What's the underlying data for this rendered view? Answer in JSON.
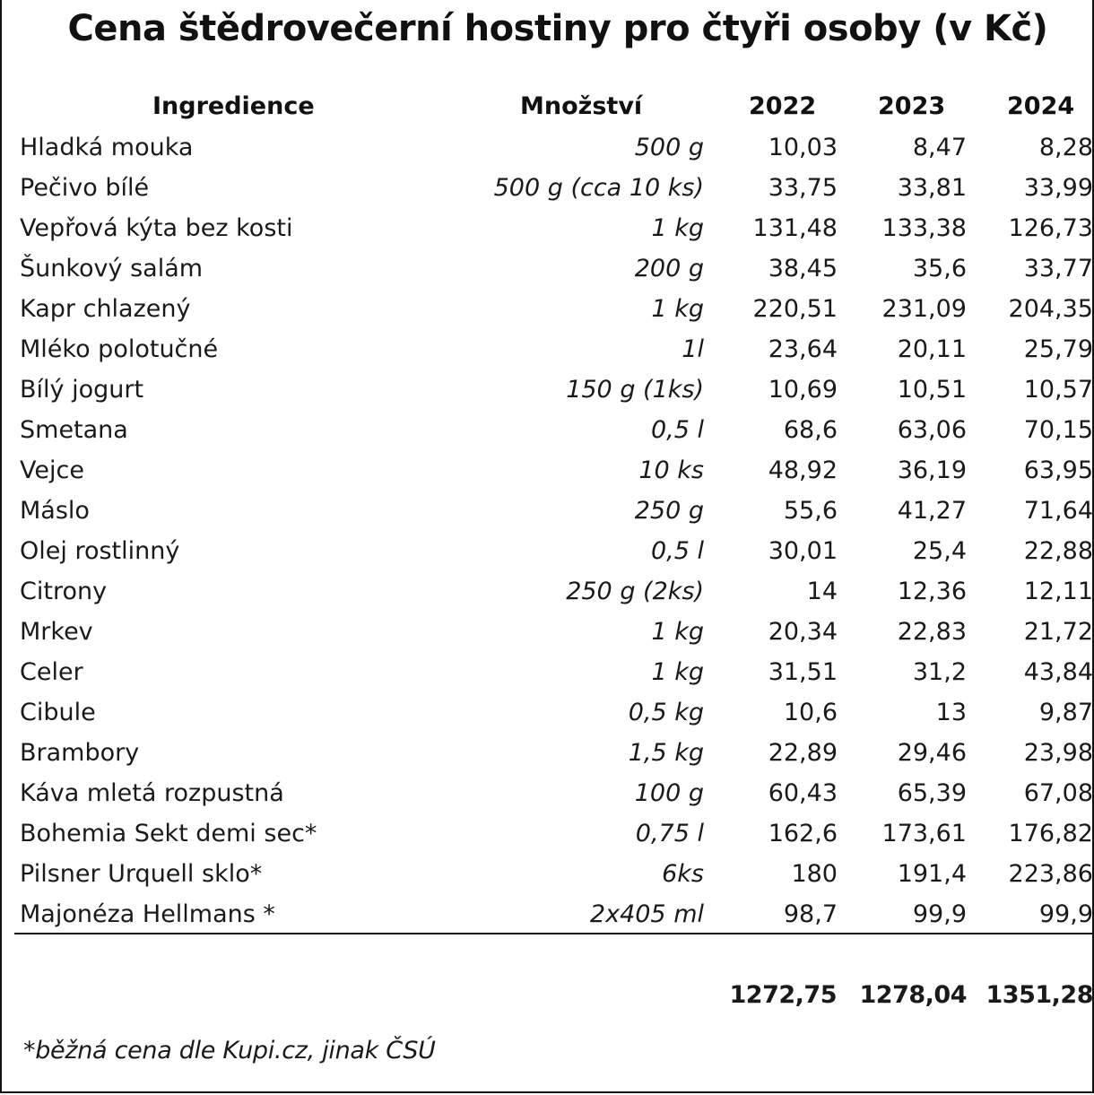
{
  "title": "Cena štědrovečerní hostiny pro čtyři osoby (v Kč)",
  "columns": {
    "ingredient": "Ingredience",
    "quantity": "Množství",
    "year_2022": "2022",
    "year_2023": "2023",
    "year_2024": "2024"
  },
  "rows": [
    {
      "name": "Hladká mouka",
      "quantity": "500 g",
      "v2022": "10,03",
      "v2023": "8,47",
      "v2024": "8,28"
    },
    {
      "name": "Pečivo bílé",
      "quantity": "500 g (cca 10 ks)",
      "v2022": "33,75",
      "v2023": "33,81",
      "v2024": "33,99"
    },
    {
      "name": "Vepřová kýta bez kosti",
      "quantity": "1 kg",
      "v2022": "131,48",
      "v2023": "133,38",
      "v2024": "126,73"
    },
    {
      "name": "Šunkový salám",
      "quantity": "200 g",
      "v2022": "38,45",
      "v2023": "35,6",
      "v2024": "33,77"
    },
    {
      "name": "Kapr chlazený",
      "quantity": "1 kg",
      "v2022": "220,51",
      "v2023": "231,09",
      "v2024": "204,35"
    },
    {
      "name": "Mléko polotučné",
      "quantity": "1l",
      "v2022": "23,64",
      "v2023": "20,11",
      "v2024": "25,79"
    },
    {
      "name": "Bílý jogurt",
      "quantity": "150 g (1ks)",
      "v2022": "10,69",
      "v2023": "10,51",
      "v2024": "10,57"
    },
    {
      "name": "Smetana",
      "quantity": "0,5 l",
      "v2022": "68,6",
      "v2023": "63,06",
      "v2024": "70,15"
    },
    {
      "name": "Vejce",
      "quantity": "10 ks",
      "v2022": "48,92",
      "v2023": "36,19",
      "v2024": "63,95"
    },
    {
      "name": "Máslo",
      "quantity": "250 g",
      "v2022": "55,6",
      "v2023": "41,27",
      "v2024": "71,64"
    },
    {
      "name": "Olej rostlinný",
      "quantity": "0,5 l",
      "v2022": "30,01",
      "v2023": "25,4",
      "v2024": "22,88"
    },
    {
      "name": "Citrony",
      "quantity": "250 g (2ks)",
      "v2022": "14",
      "v2023": "12,36",
      "v2024": "12,11"
    },
    {
      "name": "Mrkev",
      "quantity": "1 kg",
      "v2022": "20,34",
      "v2023": "22,83",
      "v2024": "21,72"
    },
    {
      "name": "Celer",
      "quantity": "1 kg",
      "v2022": "31,51",
      "v2023": "31,2",
      "v2024": "43,84"
    },
    {
      "name": "Cibule",
      "quantity": "0,5 kg",
      "v2022": "10,6",
      "v2023": "13",
      "v2024": "9,87"
    },
    {
      "name": "Brambory",
      "quantity": "1,5 kg",
      "v2022": "22,89",
      "v2023": "29,46",
      "v2024": "23,98"
    },
    {
      "name": "Káva mletá rozpustná",
      "quantity": "100 g",
      "v2022": "60,43",
      "v2023": "65,39",
      "v2024": "67,08"
    },
    {
      "name": "Bohemia Sekt demi sec*",
      "quantity": "0,75 l",
      "v2022": "162,6",
      "v2023": "173,61",
      "v2024": "176,82"
    },
    {
      "name": "Pilsner Urquell sklo*",
      "quantity": "6ks",
      "v2022": "180",
      "v2023": "191,4",
      "v2024": "223,86"
    },
    {
      "name": "Majonéza Hellmans *",
      "quantity": "2x405 ml",
      "v2022": "98,7",
      "v2023": "99,9",
      "v2024": "99,9"
    }
  ],
  "totals": {
    "v2022": "1272,75",
    "v2023": "1278,04",
    "v2024": "1351,28"
  },
  "footnote": "*běžná cena dle Kupi.cz, jinak ČSÚ"
}
